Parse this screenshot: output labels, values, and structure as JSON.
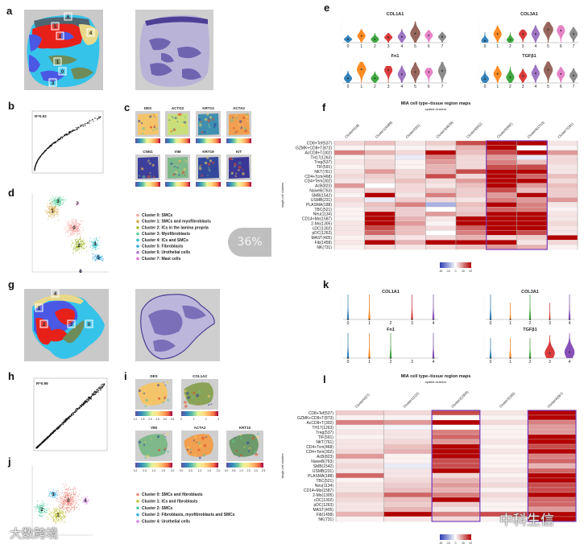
{
  "panel_labels": {
    "a": "a",
    "b": "b",
    "c": "c",
    "d": "d",
    "e": "e",
    "f": "f",
    "g": "g",
    "h": "h",
    "i": "i",
    "j": "j",
    "k": "k",
    "l": "l"
  },
  "a": {
    "cluster_boxes": [
      "6",
      "5",
      "2",
      "4",
      "1",
      "0",
      "3"
    ]
  },
  "b": {
    "r_label": "R=0.93"
  },
  "c": {
    "genes": [
      "DES",
      "ACTG2",
      "KRT13",
      "ACTA2",
      "CNN1",
      "VIM",
      "KRT19",
      "KIT"
    ]
  },
  "d": {
    "cluster_numbers": [
      "0",
      "1",
      "2",
      "3",
      "4",
      "5",
      "6",
      "7"
    ],
    "legend": [
      {
        "label": "Cluster 0: SMCs",
        "color": "#f4a6a0"
      },
      {
        "label": "Cluster 1: SMCs and myofibroblasts",
        "color": "#d6a84a"
      },
      {
        "label": "Cluster 2: ICs in the lamina propria",
        "color": "#a9bd3c"
      },
      {
        "label": "Cluster 3: Myofibroblasts",
        "color": "#5fcf9c"
      },
      {
        "label": "Cluster 4: ICs and SMCs",
        "color": "#2fbfc9"
      },
      {
        "label": "Cluster 5: Fibroblasts",
        "color": "#3aa6e0"
      },
      {
        "label": "Cluster 6: Urothelial cells",
        "color": "#b07ad8"
      },
      {
        "label": "Cluster 7: Mast cells",
        "color": "#e86fd0"
      }
    ]
  },
  "overlay": {
    "progress": "36%"
  },
  "e": {
    "x_ticks": [
      "0",
      "1",
      "2",
      "3",
      "4",
      "5",
      "6",
      "7"
    ],
    "colors": [
      "#1f77b4",
      "#ff7f0e",
      "#2ca02c",
      "#d62728",
      "#9467bd",
      "#8c564b",
      "#e377c2",
      "#7f7f7f"
    ],
    "genes": [
      {
        "name": "COL1A1",
        "ymax": 5,
        "median": [
          0.7,
          1.4,
          0.7,
          1.1,
          1.2,
          1.9,
          1.5,
          1.2
        ],
        "max": [
          1.6,
          2.8,
          2.0,
          2.0,
          2.8,
          4.4,
          2.6,
          2.2
        ],
        "density": [
          0.8,
          0.8,
          0.8,
          0.8,
          0.8,
          1,
          0.8,
          0.8
        ]
      },
      {
        "name": "COL3A1",
        "ymax": 5,
        "median": [
          0.4,
          1.8,
          0.6,
          1.8,
          1.8,
          2.7,
          2.5,
          1.8
        ],
        "max": [
          2.2,
          3.5,
          2.1,
          2.7,
          3.6,
          4.3,
          3.6,
          3.2
        ],
        "density": [
          0.7,
          0.8,
          0.7,
          0.8,
          0.8,
          1,
          0.8,
          0.8
        ]
      },
      {
        "name": "Fn1",
        "ymax": 6,
        "median": [
          1.2,
          3.6,
          1.2,
          3.4,
          2.3,
          2.9,
          2.9,
          3.2
        ],
        "max": [
          3.2,
          5.6,
          3.0,
          4.5,
          4.6,
          5.5,
          4.0,
          5.6
        ],
        "density": [
          0.8,
          0.9,
          0.8,
          0.8,
          0.8,
          0.9,
          0.8,
          0.8
        ]
      },
      {
        "name": "TGFβ1",
        "ymax": 4,
        "median": [
          0.7,
          1.6,
          1.0,
          1.2,
          1.7,
          2.3,
          1.6,
          1.3
        ],
        "max": [
          2.2,
          3.0,
          2.8,
          2.5,
          3.2,
          3.8,
          2.8,
          2.6
        ],
        "density": [
          0.8,
          0.8,
          0.8,
          0.8,
          0.8,
          0.9,
          0.8,
          0.8
        ]
      }
    ]
  },
  "f": {
    "title": "MIA cell type–tissue region maps",
    "subtitle": "spatial clusters",
    "ylabel": "single-cell clusters",
    "columns": [
      "Cluster0(18)",
      "Cluster1(4289)",
      "Cluster2(61)",
      "Cluster3(4639)",
      "Cluster4(932)",
      "Cluster5(992)",
      "Cluster6(1703)",
      "Cluster7(291)"
    ],
    "highlighted_columns": [
      [
        5,
        6
      ]
    ],
    "rows": [
      "CD8+Tef(537)",
      "GZMK+CD8+T(873)",
      "AcCD8+T(302)",
      "TH17(1263)",
      "Treg(537)",
      "TIF(591)",
      "NKT(761)",
      "CD4+Tcm(468)",
      "CD4+Tem(302)",
      "AcB(823)",
      "NaiveB(763)",
      "SMB(1542)",
      "USMB(231)",
      "PLASMA(188)",
      "TBC(521)",
      "Neu(1134)",
      "CD14+Mo(1587)",
      "2-Mo(1305)",
      "cDC(1302)",
      "pDC(1263)",
      "MAST(405)",
      "Fib(1458)",
      "NK(731)"
    ],
    "values": [
      [
        3,
        5,
        2,
        4,
        14,
        20,
        20,
        2
      ],
      [
        1,
        1,
        1,
        2,
        6,
        20,
        0,
        1
      ],
      [
        10,
        6,
        3,
        20,
        5,
        14,
        20,
        8
      ],
      [
        1,
        2,
        -2,
        10,
        3,
        8,
        -2,
        3
      ],
      [
        2,
        3,
        1,
        8,
        3,
        10,
        5,
        3
      ],
      [
        1,
        3,
        1,
        6,
        3,
        14,
        14,
        2
      ],
      [
        2,
        8,
        3,
        6,
        14,
        20,
        20,
        2
      ],
      [
        3,
        4,
        3,
        14,
        3,
        20,
        12,
        5
      ],
      [
        2,
        3,
        5,
        3,
        8,
        20,
        20,
        3
      ],
      [
        8,
        0,
        3,
        2,
        5,
        20,
        8,
        5
      ],
      [
        2,
        4,
        3,
        5,
        4,
        14,
        5,
        4
      ],
      [
        1,
        20,
        2,
        10,
        4,
        8,
        20,
        4
      ],
      [
        3,
        -2,
        4,
        3,
        2,
        10,
        8,
        8
      ],
      [
        2,
        5,
        10,
        -8,
        5,
        20,
        10,
        2
      ],
      [
        1,
        4,
        4,
        0,
        4,
        12,
        10,
        1
      ],
      [
        1,
        20,
        4,
        8,
        5,
        20,
        20,
        2
      ],
      [
        1,
        20,
        6,
        2,
        20,
        20,
        20,
        2
      ],
      [
        2,
        20,
        8,
        1,
        20,
        20,
        20,
        3
      ],
      [
        2,
        14,
        5,
        3,
        12,
        20,
        20,
        2
      ],
      [
        2,
        12,
        5,
        0,
        10,
        20,
        14,
        2
      ],
      [
        1,
        4,
        2,
        3,
        6,
        3,
        4,
        20
      ],
      [
        2,
        20,
        6,
        20,
        20,
        20,
        2,
        3
      ],
      [
        1,
        3,
        2,
        3,
        5,
        8,
        6,
        1
      ]
    ],
    "colorbar_ticks": [
      "-20",
      "-10",
      "0",
      "10",
      "20"
    ],
    "range": [
      -20,
      20
    ]
  },
  "g": {
    "cluster_boxes": [
      "4",
      "1",
      "2",
      "3",
      "0"
    ]
  },
  "h": {
    "r_label": "R=0.98"
  },
  "i": {
    "genes": [
      {
        "name": "DES",
        "ticks": [
          "1.0",
          "1.5",
          "2.0",
          "2.5",
          "3.0",
          "3.5"
        ]
      },
      {
        "name": "COL1A2",
        "ticks": [
          "0",
          "1",
          "2",
          "3"
        ]
      },
      {
        "name": "VIM",
        "ticks": [
          "0.2",
          "0.5",
          "1.0",
          "1.5",
          "2.0"
        ]
      },
      {
        "name": "ACTA2",
        "ticks": [
          "0.0",
          "0.5",
          "1.0",
          "1.5",
          "2.0"
        ]
      },
      {
        "name": "KRT10",
        "ticks": [
          "0.0",
          "0.5",
          "1.0",
          "1.5",
          "2.0",
          "2.5"
        ]
      }
    ]
  },
  "j": {
    "cluster_numbers": [
      "0",
      "1",
      "2",
      "3",
      "4"
    ],
    "legend": [
      {
        "label": "Cluster 0: SMCs and fibroblasts",
        "color": "#f08a80"
      },
      {
        "label": "Cluster 1: ICs and fibroblasts",
        "color": "#c2c23a"
      },
      {
        "label": "Cluster 2: SMCs",
        "color": "#4ec9a0"
      },
      {
        "label": "Cluster 3: Fibroblasts, myofibroblasts and SMCs",
        "color": "#3ab0e0"
      },
      {
        "label": "Cluster 4: Urothelial cells",
        "color": "#e080f0"
      }
    ]
  },
  "k": {
    "x_ticks": [
      "0",
      "1",
      "2",
      "3",
      "4"
    ],
    "colors": [
      "#1f77b4",
      "#ff7f0e",
      "#2ca02c",
      "#d62728",
      "#7b3fb0"
    ],
    "genes": [
      {
        "name": "COL1A1",
        "ymax": 1,
        "median": [
          0,
          0,
          0,
          0,
          0
        ],
        "max": [
          1,
          1,
          0,
          1,
          1
        ],
        "density": [
          0.15,
          0.15,
          0,
          0.15,
          0.15
        ]
      },
      {
        "name": "COL3A1",
        "ymax": 1.5,
        "median": [
          0,
          0,
          0,
          0,
          0
        ],
        "max": [
          1.5,
          1,
          1.5,
          1,
          1.5
        ],
        "density": [
          0.15,
          0.1,
          0.15,
          0.1,
          0.15
        ]
      },
      {
        "name": "Fn1",
        "ymax": 1,
        "median": [
          0,
          0,
          0,
          0,
          0
        ],
        "max": [
          1,
          1,
          1,
          0,
          1
        ],
        "density": [
          0.15,
          0.15,
          0.15,
          0,
          0.15
        ]
      },
      {
        "name": "TGFβ1",
        "ymax": 2.5,
        "median": [
          0,
          0,
          0,
          0.5,
          0.6
        ],
        "max": [
          2,
          2,
          2,
          2.3,
          2.5
        ],
        "density": [
          0.15,
          0.15,
          0.15,
          1,
          1
        ]
      }
    ]
  },
  "l": {
    "title": "MIA cell type–tissue region maps",
    "subtitle": "spatial clusters",
    "ylabel": "single-cell clusters",
    "columns": [
      "Cluster0(27)",
      "Cluster1(122)",
      "Cluster2(1906)",
      "Cluster3(165)",
      "Cluster4(567)"
    ],
    "highlighted_columns": [
      [
        2,
        2
      ],
      [
        4,
        4
      ]
    ],
    "rows": [
      "CD8+Tef(537)",
      "GZMK+CD8+T(873)",
      "AcCD8+T(302)",
      "TH17(1263)",
      "Treg(537)",
      "TIF(591)",
      "NKT(761)",
      "CD4+Tcm(468)",
      "CD4+Tem(302)",
      "AcB(823)",
      "NaiveB(763)",
      "SMB(1542)",
      "USMB(231)",
      "PLASMA(188)",
      "TBC(521)",
      "Neu(1134)",
      "CD14+Mo(1587)",
      "2-Mo(1305)",
      "cDC(1302)",
      "pDC(1263)",
      "MAST(405)",
      "Fib(1458)",
      "NK(731)"
    ],
    "values": [
      [
        4,
        3,
        14,
        2,
        20
      ],
      [
        1,
        1,
        0,
        1,
        20
      ],
      [
        10,
        8,
        20,
        3,
        10
      ],
      [
        1,
        -1,
        0,
        1,
        8
      ],
      [
        2,
        2,
        10,
        1,
        8
      ],
      [
        1,
        2,
        12,
        1,
        20
      ],
      [
        2,
        3,
        8,
        2,
        20
      ],
      [
        2,
        5,
        20,
        1,
        14
      ],
      [
        3,
        6,
        20,
        2,
        20
      ],
      [
        8,
        1,
        20,
        1,
        10
      ],
      [
        2,
        1,
        14,
        1,
        12
      ],
      [
        3,
        -2,
        14,
        1,
        6
      ],
      [
        2,
        2,
        20,
        2,
        12
      ],
      [
        12,
        2,
        3,
        1,
        20
      ],
      [
        1,
        3,
        6,
        2,
        20
      ],
      [
        2,
        4,
        8,
        3,
        14
      ],
      [
        2,
        5,
        6,
        1,
        14
      ],
      [
        4,
        12,
        10,
        3,
        20
      ],
      [
        3,
        5,
        20,
        2,
        12
      ],
      [
        2,
        4,
        4,
        1,
        12
      ],
      [
        2,
        6,
        2,
        1,
        8
      ],
      [
        6,
        20,
        10,
        14,
        20
      ],
      [
        1,
        2,
        3,
        1,
        20
      ]
    ],
    "colorbar_ticks": [
      "-20",
      "-10",
      "0",
      "10",
      "20"
    ],
    "range": [
      -20,
      20
    ]
  },
  "watermarks": {
    "right": "中科生信",
    "left": "大数跨境"
  }
}
